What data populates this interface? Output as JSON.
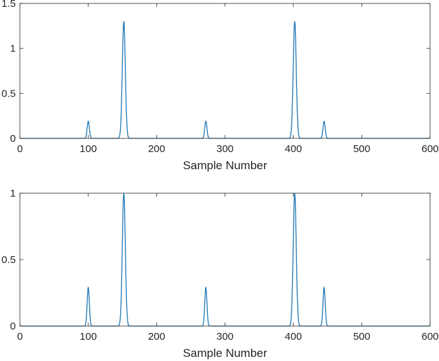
{
  "colors": {
    "line": "#1f77b4",
    "axis": "#262626",
    "background": "#ffffff"
  },
  "chart_data": [
    {
      "type": "line",
      "xlabel": "Sample Number",
      "ylabel": "",
      "title": "",
      "xlim": [
        0,
        600
      ],
      "ylim": [
        0,
        1.5
      ],
      "grid": false,
      "xticks": [
        0,
        100,
        200,
        300,
        400,
        500,
        600
      ],
      "xtick_labels": [
        "0",
        "100",
        "200",
        "300",
        "400",
        "500",
        "600"
      ],
      "yticks": [
        0,
        0.5,
        1,
        1.5
      ],
      "ytick_labels": [
        "0",
        "0.5",
        "1",
        "1.5"
      ],
      "series": [
        {
          "peaks": [
            {
              "center": 100,
              "height": 0.19,
              "width": 1.6
            },
            {
              "center": 152,
              "height": 1.3,
              "width": 2.2
            },
            {
              "center": 272,
              "height": 0.19,
              "width": 1.6
            },
            {
              "center": 402,
              "height": 1.3,
              "width": 2.2
            },
            {
              "center": 445,
              "height": 0.19,
              "width": 1.6
            }
          ]
        }
      ]
    },
    {
      "type": "line",
      "xlabel": "Sample Number",
      "ylabel": "",
      "title": "",
      "xlim": [
        0,
        600
      ],
      "ylim": [
        0,
        1
      ],
      "grid": false,
      "xticks": [
        0,
        100,
        200,
        300,
        400,
        500,
        600
      ],
      "xtick_labels": [
        "0",
        "100",
        "200",
        "300",
        "400",
        "500",
        "600"
      ],
      "yticks": [
        0,
        0.5,
        1
      ],
      "ytick_labels": [
        "0",
        "0.5",
        "1"
      ],
      "series": [
        {
          "peaks": [
            {
              "center": 100,
              "height": 0.29,
              "width": 1.6
            },
            {
              "center": 152,
              "height": 1.0,
              "width": 2.2
            },
            {
              "center": 272,
              "height": 0.29,
              "width": 1.6
            },
            {
              "center": 402,
              "height": 1.0,
              "width": 2.2
            },
            {
              "center": 445,
              "height": 0.29,
              "width": 1.6
            }
          ]
        }
      ]
    }
  ]
}
